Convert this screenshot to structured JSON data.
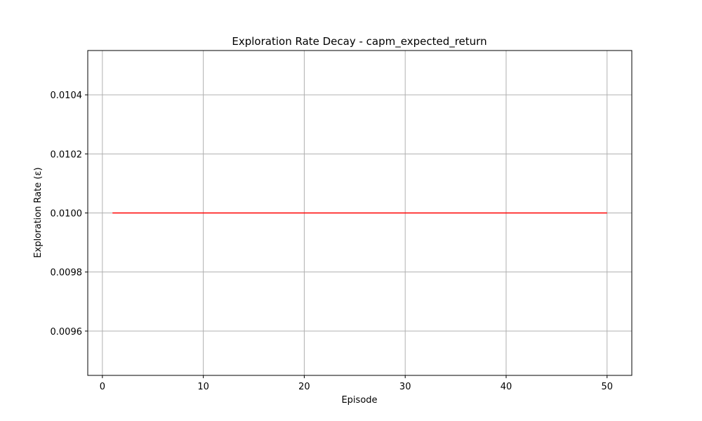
{
  "chart_data": {
    "type": "line",
    "title": "Exploration Rate Decay - capm_expected_return",
    "xlabel": "Episode",
    "ylabel": "Exploration Rate (ε)",
    "xlim": [
      -1.45,
      52.45
    ],
    "ylim": [
      0.00945,
      0.01055
    ],
    "xticks": [
      0,
      10,
      20,
      30,
      40,
      50
    ],
    "xtick_labels": [
      "0",
      "10",
      "20",
      "30",
      "40",
      "50"
    ],
    "yticks": [
      0.0096,
      0.0098,
      0.01,
      0.0102,
      0.0104
    ],
    "ytick_labels": [
      "0.0096",
      "0.0098",
      "0.0100",
      "0.0102",
      "0.0104"
    ],
    "grid": true,
    "series": [
      {
        "color": "#ff0000",
        "x": [
          1,
          2,
          3,
          4,
          5,
          6,
          7,
          8,
          9,
          10,
          11,
          12,
          13,
          14,
          15,
          16,
          17,
          18,
          19,
          20,
          21,
          22,
          23,
          24,
          25,
          26,
          27,
          28,
          29,
          30,
          31,
          32,
          33,
          34,
          35,
          36,
          37,
          38,
          39,
          40,
          41,
          42,
          43,
          44,
          45,
          46,
          47,
          48,
          49,
          50
        ],
        "y": [
          0.01,
          0.01,
          0.01,
          0.01,
          0.01,
          0.01,
          0.01,
          0.01,
          0.01,
          0.01,
          0.01,
          0.01,
          0.01,
          0.01,
          0.01,
          0.01,
          0.01,
          0.01,
          0.01,
          0.01,
          0.01,
          0.01,
          0.01,
          0.01,
          0.01,
          0.01,
          0.01,
          0.01,
          0.01,
          0.01,
          0.01,
          0.01,
          0.01,
          0.01,
          0.01,
          0.01,
          0.01,
          0.01,
          0.01,
          0.01,
          0.01,
          0.01,
          0.01,
          0.01,
          0.01,
          0.01,
          0.01,
          0.01,
          0.01,
          0.01
        ]
      }
    ]
  }
}
